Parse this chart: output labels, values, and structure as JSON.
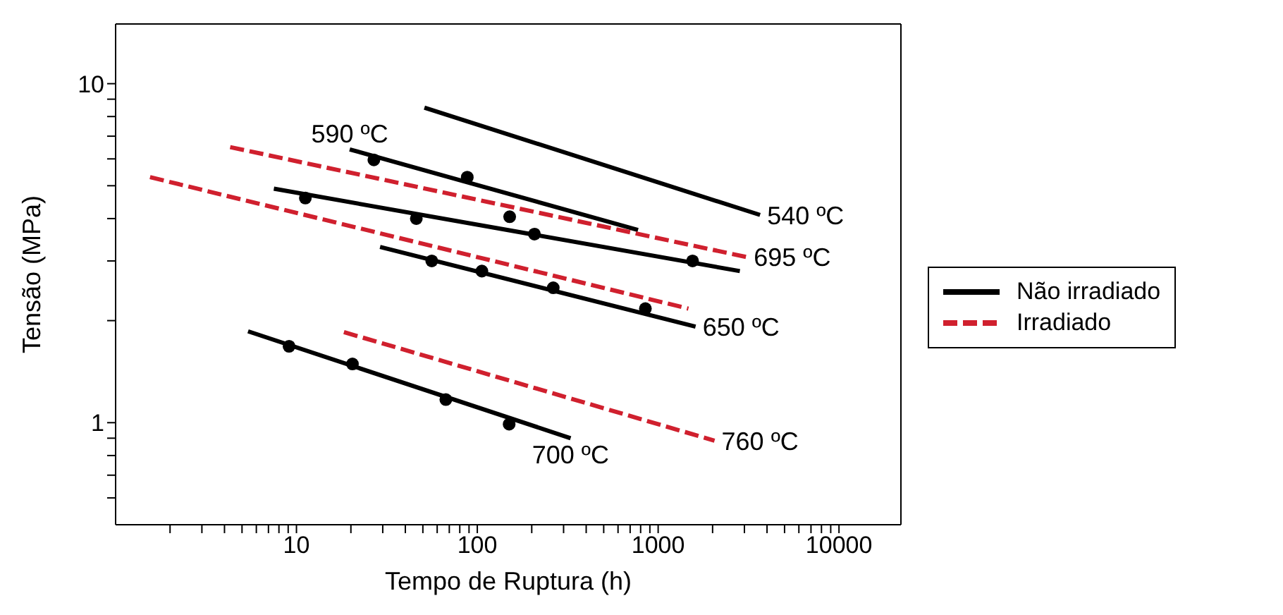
{
  "chart_data": {
    "type": "line",
    "xlabel": "Tempo de Ruptura (h)",
    "ylabel": "Tensão (MPa)",
    "log": "xy",
    "xlim": [
      1,
      22000
    ],
    "ylim": [
      0.5,
      15
    ],
    "xticks": [
      {
        "value": 2,
        "label": null
      },
      {
        "value": 3,
        "label": null
      },
      {
        "value": 4,
        "label": null
      },
      {
        "value": 5,
        "label": null
      },
      {
        "value": 6,
        "label": null
      },
      {
        "value": 7,
        "label": null
      },
      {
        "value": 8,
        "label": null
      },
      {
        "value": 9,
        "label": null
      },
      10,
      {
        "value": 20,
        "label": null
      },
      {
        "value": 30,
        "label": null
      },
      {
        "value": 40,
        "label": null
      },
      {
        "value": 50,
        "label": null
      },
      {
        "value": 60,
        "label": null
      },
      {
        "value": 70,
        "label": null
      },
      {
        "value": 80,
        "label": null
      },
      {
        "value": 90,
        "label": null
      },
      100,
      {
        "value": 200,
        "label": null
      },
      {
        "value": 300,
        "label": null
      },
      {
        "value": 400,
        "label": null
      },
      {
        "value": 500,
        "label": null
      },
      {
        "value": 600,
        "label": null
      },
      {
        "value": 700,
        "label": null
      },
      {
        "value": 800,
        "label": null
      },
      {
        "value": 900,
        "label": null
      },
      1000,
      {
        "value": 2000,
        "label": null
      },
      {
        "value": 3000,
        "label": null
      },
      {
        "value": 4000,
        "label": null
      },
      {
        "value": 5000,
        "label": null
      },
      {
        "value": 6000,
        "label": null
      },
      {
        "value": 7000,
        "label": null
      },
      {
        "value": 8000,
        "label": null
      },
      {
        "value": 9000,
        "label": null
      },
      10000
    ],
    "yticks": [
      {
        "value": 0.6,
        "label": null
      },
      {
        "value": 0.7,
        "label": null
      },
      {
        "value": 0.8,
        "label": null
      },
      {
        "value": 0.9,
        "label": null
      },
      1,
      {
        "value": 2,
        "label": null
      },
      {
        "value": 3,
        "label": null
      },
      {
        "value": 4,
        "label": null
      },
      {
        "value": 5,
        "label": null
      },
      {
        "value": 6,
        "label": null
      },
      {
        "value": 7,
        "label": null
      },
      {
        "value": 8,
        "label": null
      },
      {
        "value": 9,
        "label": null
      },
      10
    ],
    "legend": "right",
    "series": [
      {
        "name": "Não irradiado",
        "color": "#000000",
        "line_style": "solid",
        "marker": "none",
        "x": [
          51,
          3660
        ],
        "values": [
          8.5,
          4.1
        ]
      },
      {
        "color": "#000000",
        "line_style": "solid",
        "marker": "none",
        "x": [
          7.5,
          2830
        ],
        "values": [
          4.9,
          2.8
        ]
      },
      {
        "color": "#000000",
        "line_style": "solid",
        "marker": "none",
        "x": [
          29,
          1610
        ],
        "values": [
          3.3,
          1.92
        ]
      },
      {
        "color": "#000000",
        "line_style": "solid",
        "marker": "none",
        "x": [
          19.7,
          774
        ],
        "values": [
          6.4,
          3.7
        ]
      },
      {
        "color": "#000000",
        "line_style": "solid",
        "marker": "none",
        "x": [
          5.4,
          328
        ],
        "values": [
          1.86,
          0.9
        ]
      },
      {
        "name": "Irradiado",
        "color": "#d0202e",
        "line_style": "dashed",
        "marker": "none",
        "x": [
          4.3,
          3090
        ],
        "values": [
          6.5,
          3.08
        ]
      },
      {
        "color": "#d0202e",
        "line_style": "dashed",
        "marker": "none",
        "x": [
          1.55,
          1470
        ],
        "values": [
          5.3,
          2.17
        ]
      },
      {
        "color": "#d0202e",
        "line_style": "dashed",
        "marker": "none",
        "x": [
          18.3,
          2050
        ],
        "values": [
          1.85,
          0.885
        ]
      },
      {
        "type": "scatter",
        "color": "#000000",
        "marker": "circle",
        "x": [
          26.8,
          88,
          11.2,
          46,
          151,
          207,
          1550,
          56,
          106,
          263,
          850,
          9.1,
          20.4,
          67,
          150
        ],
        "values": [
          5.96,
          5.3,
          4.6,
          4.0,
          4.05,
          3.6,
          3.0,
          3.0,
          2.8,
          2.5,
          2.17,
          1.68,
          1.49,
          1.17,
          0.99
        ]
      }
    ],
    "annotations": [
      {
        "text": "540 ºC",
        "x": 3660,
        "y": 4.1
      },
      {
        "text": "695 ºC",
        "x": 3090,
        "y": 3.08
      },
      {
        "text": "650 ºC",
        "x": 1610,
        "y": 1.92
      },
      {
        "text": "590 ºC",
        "x": 19.7,
        "y": 6.4
      },
      {
        "text": "700 ºC",
        "x": 328,
        "y": 0.9
      },
      {
        "text": "760 ºC",
        "x": 2050,
        "y": 0.885
      }
    ]
  }
}
